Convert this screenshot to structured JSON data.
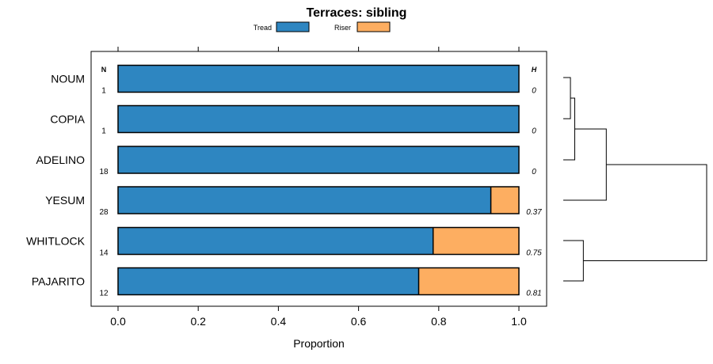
{
  "chart_data": {
    "type": "bar",
    "subtype": "stacked-horizontal-proportion",
    "title": "Terraces: sibling",
    "xlabel": "Proportion",
    "xlim": [
      -0.05,
      1.05
    ],
    "xticks": [
      0.0,
      0.2,
      0.4,
      0.6,
      0.8,
      1.0
    ],
    "xtick_labels": [
      "0.0",
      "0.2",
      "0.4",
      "0.6",
      "0.8",
      "1.0"
    ],
    "n_header": "N",
    "h_header": "H",
    "series": [
      {
        "name": "Tread",
        "color": "#2e86c1"
      },
      {
        "name": "Riser",
        "color": "#fdae61"
      }
    ],
    "categories": [
      "NOUM",
      "COPIA",
      "ADELINO",
      "YESUM",
      "WHITLOCK",
      "PAJARITO"
    ],
    "n_values": [
      "1",
      "1",
      "18",
      "28",
      "14",
      "12"
    ],
    "h_values": [
      "0",
      "0",
      "0",
      "0.37",
      "0.75",
      "0.81"
    ],
    "tread_values": [
      1.0,
      1.0,
      1.0,
      0.93,
      0.786,
      0.75
    ],
    "riser_values": [
      0.0,
      0.0,
      0.0,
      0.07,
      0.214,
      0.25
    ],
    "dendrogram": {
      "leaf_order": [
        "NOUM",
        "COPIA",
        "ADELINO",
        "YESUM",
        "WHITLOCK",
        "PAJARITO"
      ],
      "merges": [
        {
          "a": "NOUM",
          "b": "COPIA",
          "height": 0.05
        },
        {
          "a": "NOUM+COPIA",
          "b": "ADELINO",
          "height": 0.08
        },
        {
          "a": "NOUM+COPIA+ADELINO",
          "b": "YESUM",
          "height": 0.3
        },
        {
          "a": "WHITLOCK",
          "b": "PAJARITO",
          "height": 0.14
        },
        {
          "a": "TOP4",
          "b": "WHITLOCK+PAJARITO",
          "height": 1.0
        }
      ]
    }
  }
}
